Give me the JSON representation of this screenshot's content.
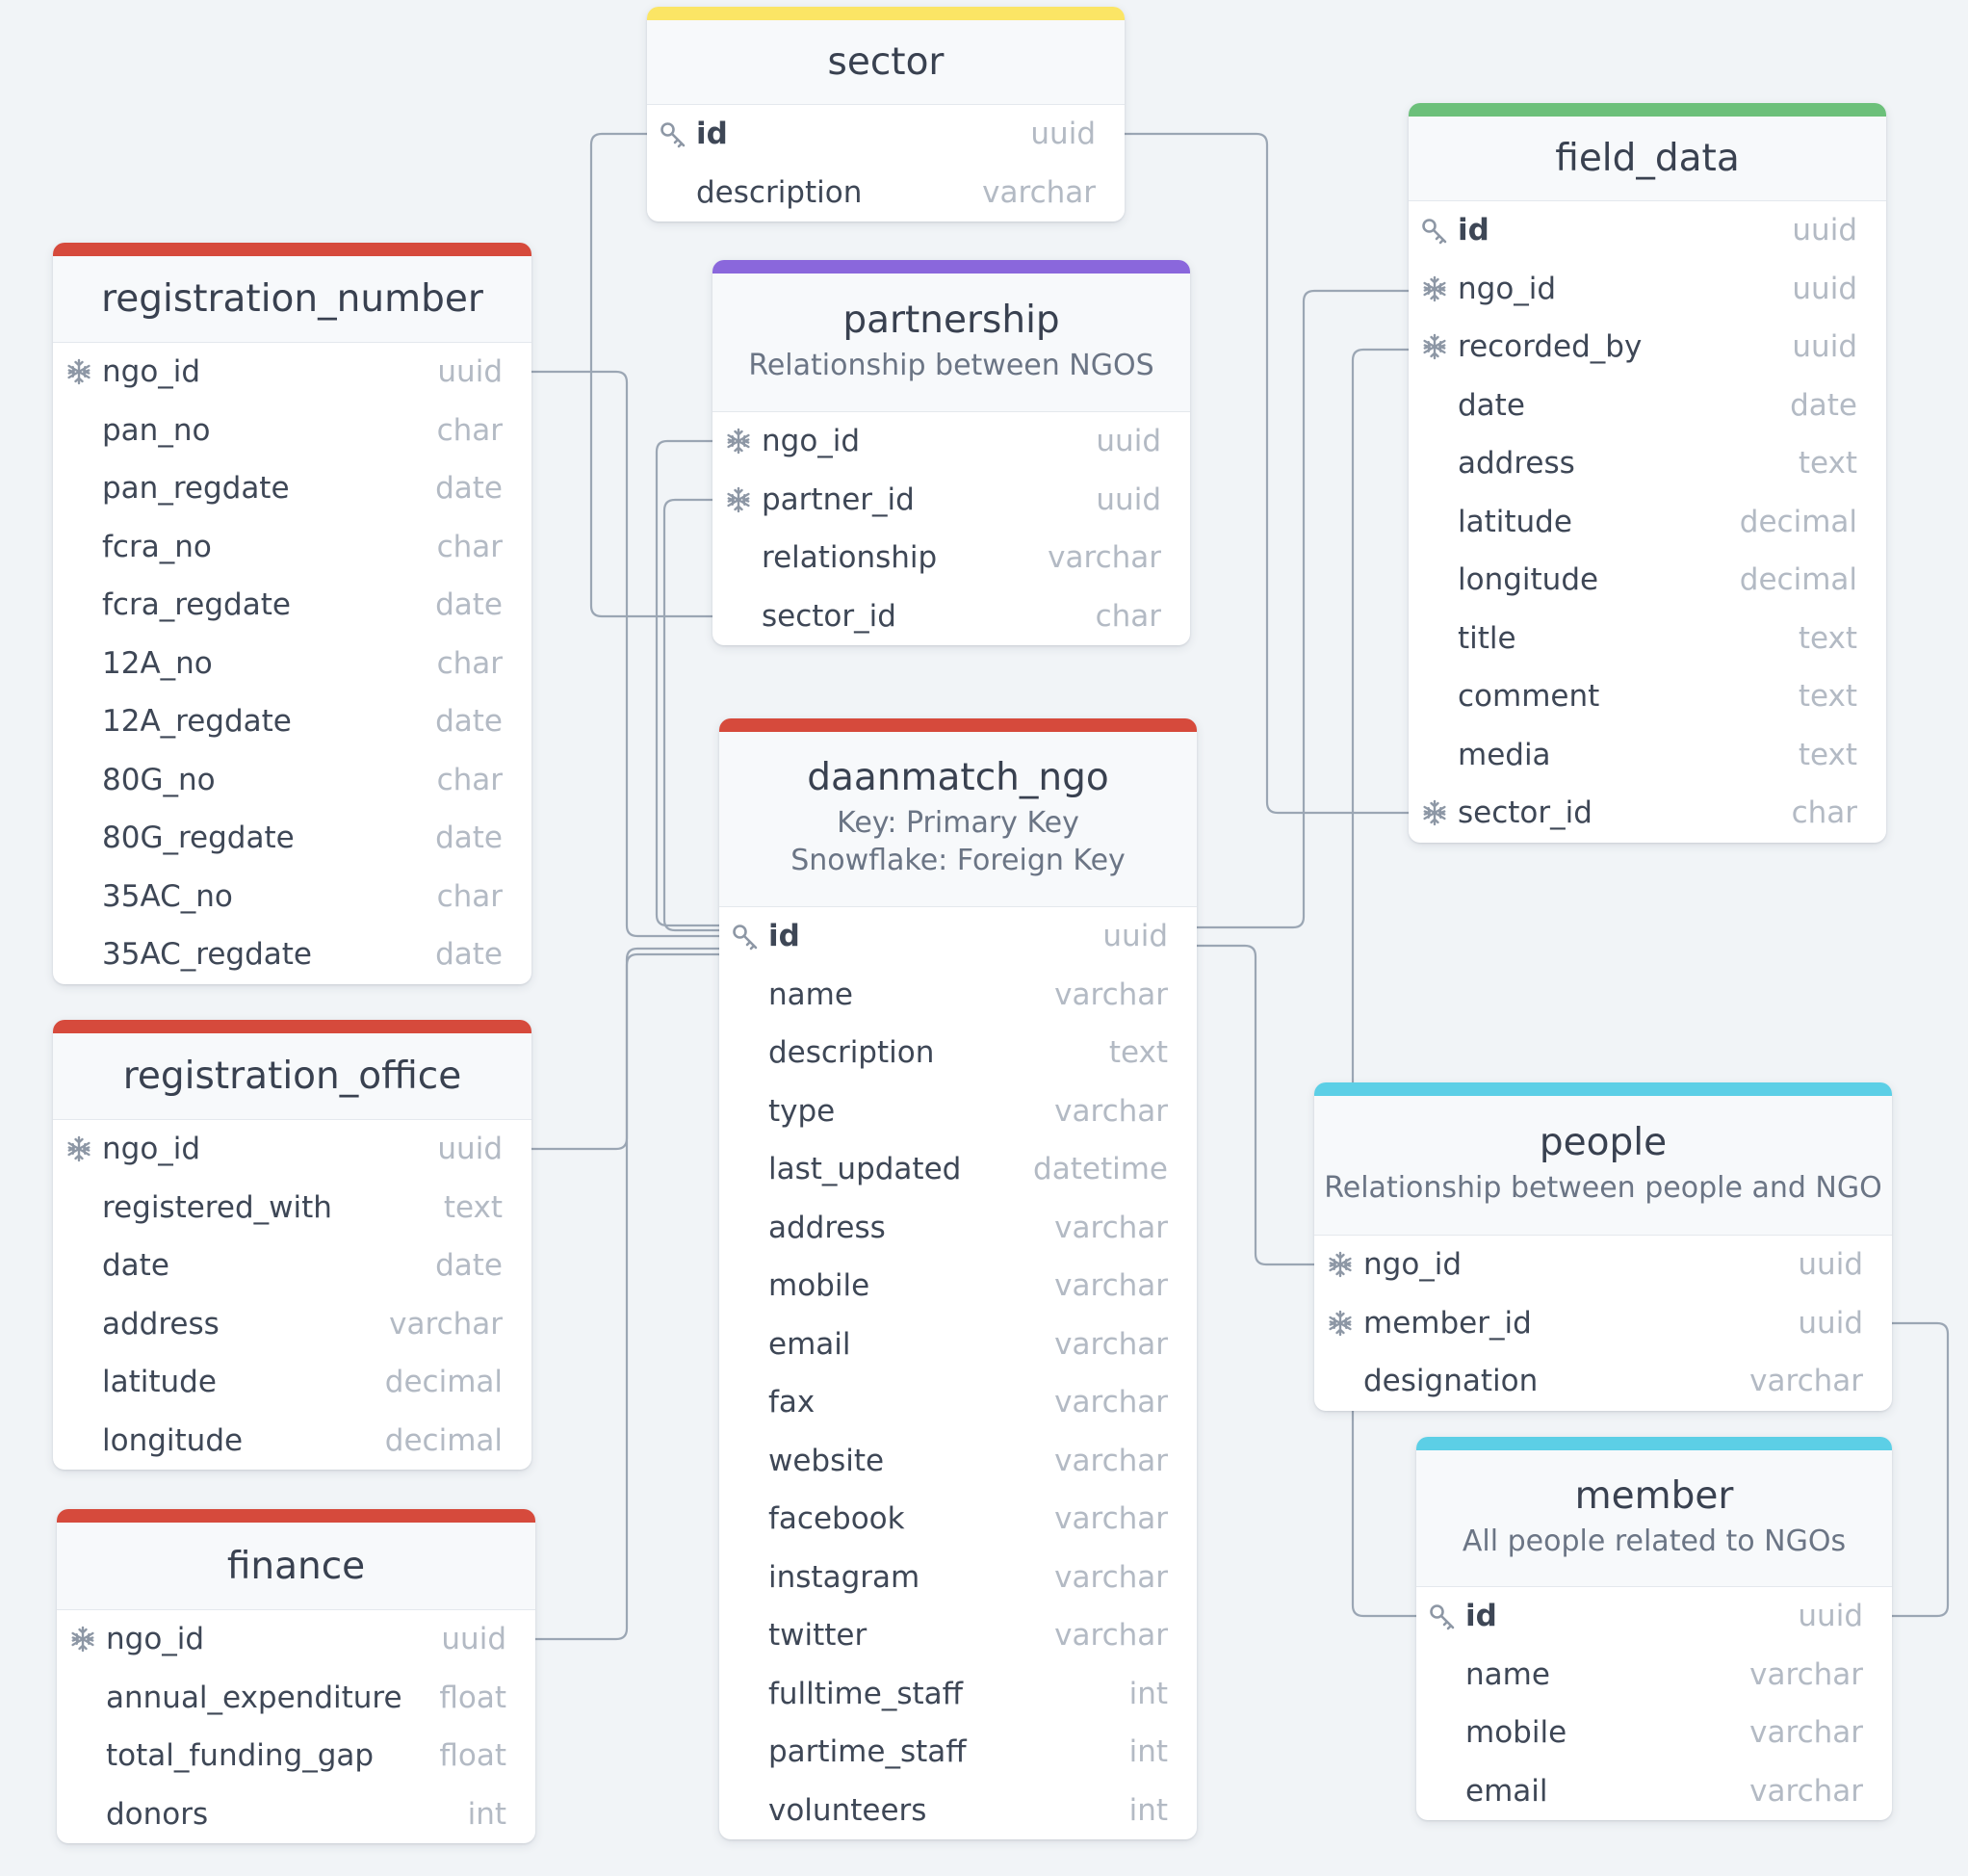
{
  "colors": {
    "background": "#f1f4f7",
    "yellow": "#fbe565",
    "red": "#d64a3c",
    "purple": "#8a67dc",
    "green": "#6cc07a",
    "cyan": "#5ccfe6",
    "connector": "#9ba6b4"
  },
  "icons": {
    "primary_key": "key-icon",
    "foreign_key": "snowflake-icon"
  },
  "tables": [
    {
      "id": "sector",
      "name": "sector",
      "note": "",
      "accent": "#fbe565",
      "fields": [
        {
          "name": "id",
          "type": "uuid",
          "key": "pk"
        },
        {
          "name": "description",
          "type": "varchar",
          "key": ""
        }
      ]
    },
    {
      "id": "partnership",
      "name": "partnership",
      "note": "Relationship between NGOS",
      "accent": "#8a67dc",
      "fields": [
        {
          "name": "ngo_id",
          "type": "uuid",
          "key": "fk"
        },
        {
          "name": "partner_id",
          "type": "uuid",
          "key": "fk"
        },
        {
          "name": "relationship",
          "type": "varchar",
          "key": ""
        },
        {
          "name": "sector_id",
          "type": "char",
          "key": ""
        }
      ]
    },
    {
      "id": "registration_number",
      "name": "registration_number",
      "note": "",
      "accent": "#d64a3c",
      "fields": [
        {
          "name": "ngo_id",
          "type": "uuid",
          "key": "fk"
        },
        {
          "name": "pan_no",
          "type": "char",
          "key": ""
        },
        {
          "name": "pan_regdate",
          "type": "date",
          "key": ""
        },
        {
          "name": "fcra_no",
          "type": "char",
          "key": ""
        },
        {
          "name": "fcra_regdate",
          "type": "date",
          "key": ""
        },
        {
          "name": "12A_no",
          "type": "char",
          "key": ""
        },
        {
          "name": "12A_regdate",
          "type": "date",
          "key": ""
        },
        {
          "name": "80G_no",
          "type": "char",
          "key": ""
        },
        {
          "name": "80G_regdate",
          "type": "date",
          "key": ""
        },
        {
          "name": "35AC_no",
          "type": "char",
          "key": ""
        },
        {
          "name": "35AC_regdate",
          "type": "date",
          "key": ""
        }
      ]
    },
    {
      "id": "field_data",
      "name": "field_data",
      "note": "",
      "accent": "#6cc07a",
      "fields": [
        {
          "name": "id",
          "type": "uuid",
          "key": "pk"
        },
        {
          "name": "ngo_id",
          "type": "uuid",
          "key": "fk"
        },
        {
          "name": "recorded_by",
          "type": "uuid",
          "key": "fk"
        },
        {
          "name": "date",
          "type": "date",
          "key": ""
        },
        {
          "name": "address",
          "type": "text",
          "key": ""
        },
        {
          "name": "latitude",
          "type": "decimal",
          "key": ""
        },
        {
          "name": "longitude",
          "type": "decimal",
          "key": ""
        },
        {
          "name": "title",
          "type": "text",
          "key": ""
        },
        {
          "name": "comment",
          "type": "text",
          "key": ""
        },
        {
          "name": "media",
          "type": "text",
          "key": ""
        },
        {
          "name": "sector_id",
          "type": "char",
          "key": "fk"
        }
      ]
    },
    {
      "id": "daanmatch_ngo",
      "name": "daanmatch_ngo",
      "note": "Key: Primary Key\nSnowflake: Foreign Key",
      "accent": "#d64a3c",
      "fields": [
        {
          "name": "id",
          "type": "uuid",
          "key": "pk"
        },
        {
          "name": "name",
          "type": "varchar",
          "key": ""
        },
        {
          "name": "description",
          "type": "text",
          "key": ""
        },
        {
          "name": "type",
          "type": "varchar",
          "key": ""
        },
        {
          "name": "last_updated",
          "type": "datetime",
          "key": ""
        },
        {
          "name": "address",
          "type": "varchar",
          "key": ""
        },
        {
          "name": "mobile",
          "type": "varchar",
          "key": ""
        },
        {
          "name": "email",
          "type": "varchar",
          "key": ""
        },
        {
          "name": "fax",
          "type": "varchar",
          "key": ""
        },
        {
          "name": "website",
          "type": "varchar",
          "key": ""
        },
        {
          "name": "facebook",
          "type": "varchar",
          "key": ""
        },
        {
          "name": "instagram",
          "type": "varchar",
          "key": ""
        },
        {
          "name": "twitter",
          "type": "varchar",
          "key": ""
        },
        {
          "name": "fulltime_staff",
          "type": "int",
          "key": ""
        },
        {
          "name": "partime_staff",
          "type": "int",
          "key": ""
        },
        {
          "name": "volunteers",
          "type": "int",
          "key": ""
        }
      ]
    },
    {
      "id": "registration_office",
      "name": "registration_office",
      "note": "",
      "accent": "#d64a3c",
      "fields": [
        {
          "name": "ngo_id",
          "type": "uuid",
          "key": "fk"
        },
        {
          "name": "registered_with",
          "type": "text",
          "key": ""
        },
        {
          "name": "date",
          "type": "date",
          "key": ""
        },
        {
          "name": "address",
          "type": "varchar",
          "key": ""
        },
        {
          "name": "latitude",
          "type": "decimal",
          "key": ""
        },
        {
          "name": "longitude",
          "type": "decimal",
          "key": ""
        }
      ]
    },
    {
      "id": "people",
      "name": "people",
      "note": "Relationship between people and NGO",
      "accent": "#5ccfe6",
      "fields": [
        {
          "name": "ngo_id",
          "type": "uuid",
          "key": "fk"
        },
        {
          "name": "member_id",
          "type": "uuid",
          "key": "fk"
        },
        {
          "name": "designation",
          "type": "varchar",
          "key": ""
        }
      ]
    },
    {
      "id": "finance",
      "name": "finance",
      "note": "",
      "accent": "#d64a3c",
      "fields": [
        {
          "name": "ngo_id",
          "type": "uuid",
          "key": "fk"
        },
        {
          "name": "annual_expenditure",
          "type": "float",
          "key": ""
        },
        {
          "name": "total_funding_gap",
          "type": "float",
          "key": ""
        },
        {
          "name": "donors",
          "type": "int",
          "key": ""
        }
      ]
    },
    {
      "id": "member",
      "name": "member",
      "note": "All people related to NGOs",
      "accent": "#5ccfe6",
      "fields": [
        {
          "name": "id",
          "type": "uuid",
          "key": "pk"
        },
        {
          "name": "name",
          "type": "varchar",
          "key": ""
        },
        {
          "name": "mobile",
          "type": "varchar",
          "key": ""
        },
        {
          "name": "email",
          "type": "varchar",
          "key": ""
        }
      ]
    }
  ]
}
